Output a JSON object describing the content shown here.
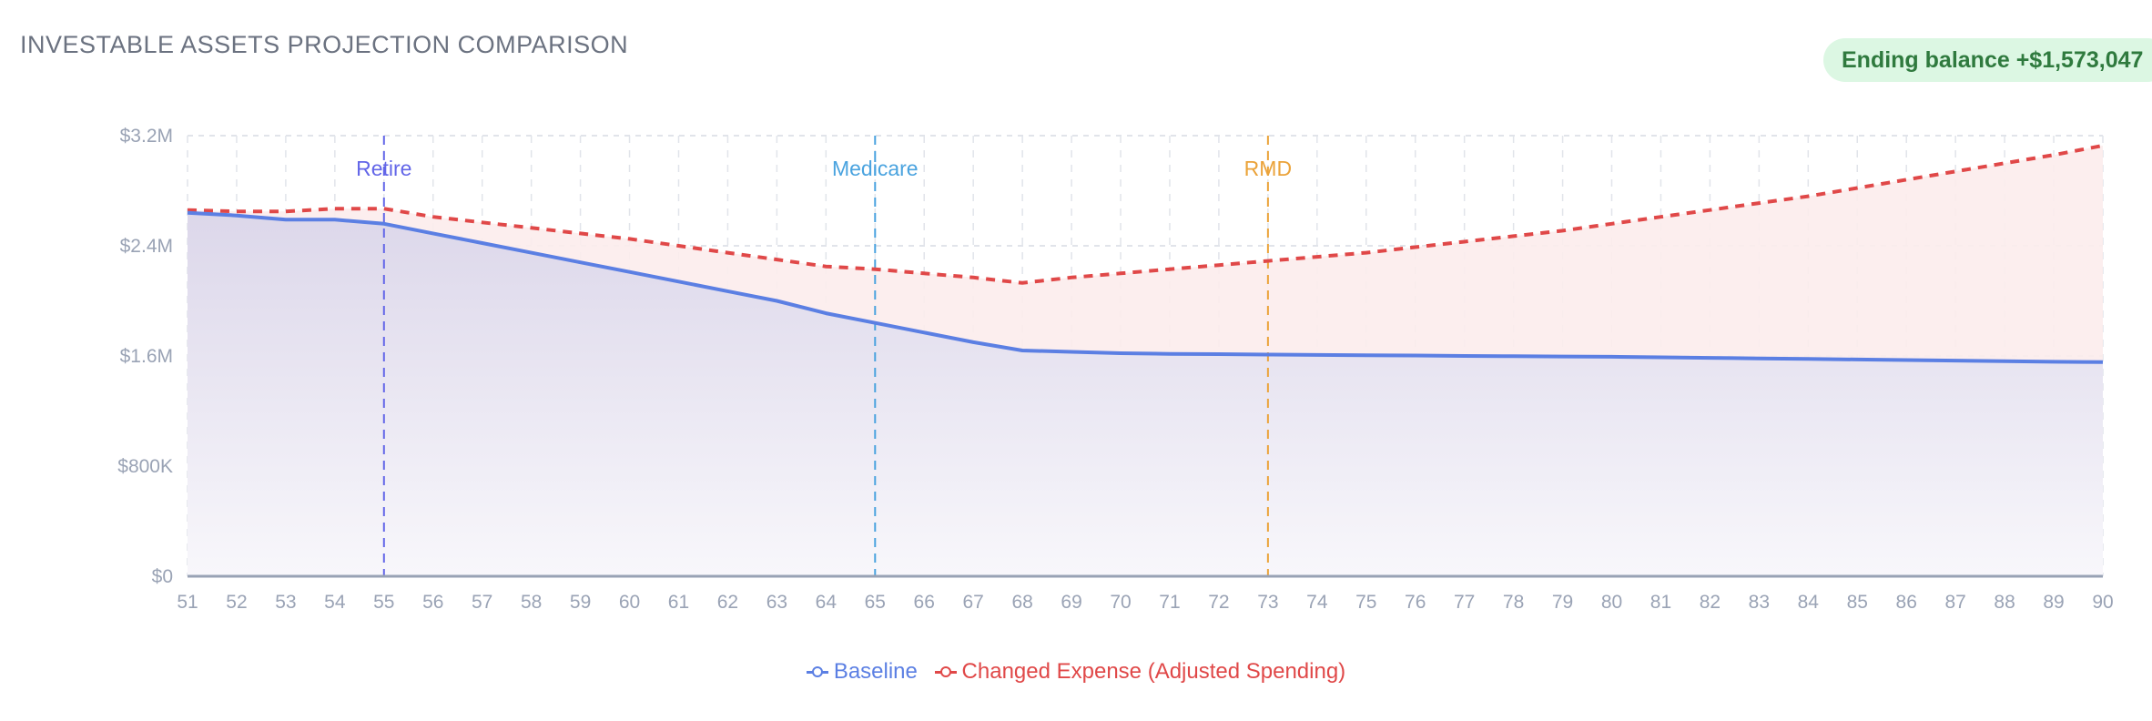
{
  "header": {
    "title": "INVESTABLE ASSETS PROJECTION COMPARISON",
    "badge": "Ending balance +$1,573,047"
  },
  "colors": {
    "baseline": "#5b7fe3",
    "changed": "#e04848",
    "badge_bg": "#dcf7e3",
    "badge_text": "#2f7a3e"
  },
  "chart_data": {
    "type": "area",
    "x": [
      51,
      52,
      53,
      54,
      55,
      56,
      57,
      58,
      59,
      60,
      61,
      62,
      63,
      64,
      65,
      66,
      67,
      68,
      69,
      70,
      71,
      72,
      73,
      74,
      75,
      76,
      77,
      78,
      79,
      80,
      81,
      82,
      83,
      84,
      85,
      86,
      87,
      88,
      89,
      90
    ],
    "series": [
      {
        "name": "Baseline",
        "color": "#5b7fe3",
        "dash": false,
        "values": [
          2.64,
          2.62,
          2.59,
          2.59,
          2.56,
          2.49,
          2.42,
          2.35,
          2.28,
          2.21,
          2.14,
          2.07,
          2.0,
          1.91,
          1.84,
          1.77,
          1.7,
          1.64,
          1.63,
          1.62,
          1.615,
          1.613,
          1.61,
          1.607,
          1.605,
          1.603,
          1.6,
          1.598,
          1.596,
          1.594,
          1.59,
          1.586,
          1.582,
          1.578,
          1.574,
          1.57,
          1.566,
          1.562,
          1.558,
          1.555
        ]
      },
      {
        "name": "Changed Expense (Adjusted Spending)",
        "color": "#e04848",
        "dash": true,
        "values": [
          2.66,
          2.65,
          2.65,
          2.67,
          2.67,
          2.61,
          2.57,
          2.53,
          2.49,
          2.45,
          2.4,
          2.35,
          2.3,
          2.25,
          2.23,
          2.2,
          2.17,
          2.13,
          2.17,
          2.2,
          2.23,
          2.26,
          2.29,
          2.32,
          2.35,
          2.39,
          2.43,
          2.47,
          2.51,
          2.56,
          2.61,
          2.66,
          2.71,
          2.76,
          2.82,
          2.88,
          2.94,
          3.0,
          3.06,
          3.128
        ]
      }
    ],
    "y_unit": "millions USD",
    "ylim": [
      0,
      3.2
    ],
    "yticks": [
      0,
      0.8,
      1.6,
      2.4,
      3.2
    ],
    "ytick_labels": [
      "$0",
      "$800K",
      "$1.6M",
      "$2.4M",
      "$3.2M"
    ],
    "xlim": [
      51,
      90
    ],
    "grid": true,
    "legend": "bottom",
    "events": [
      {
        "label": "Retire",
        "x": 55,
        "color": "#6366e8"
      },
      {
        "label": "Medicare",
        "x": 65,
        "color": "#4aa3df"
      },
      {
        "label": "RMD",
        "x": 73,
        "color": "#eba33a"
      }
    ]
  }
}
